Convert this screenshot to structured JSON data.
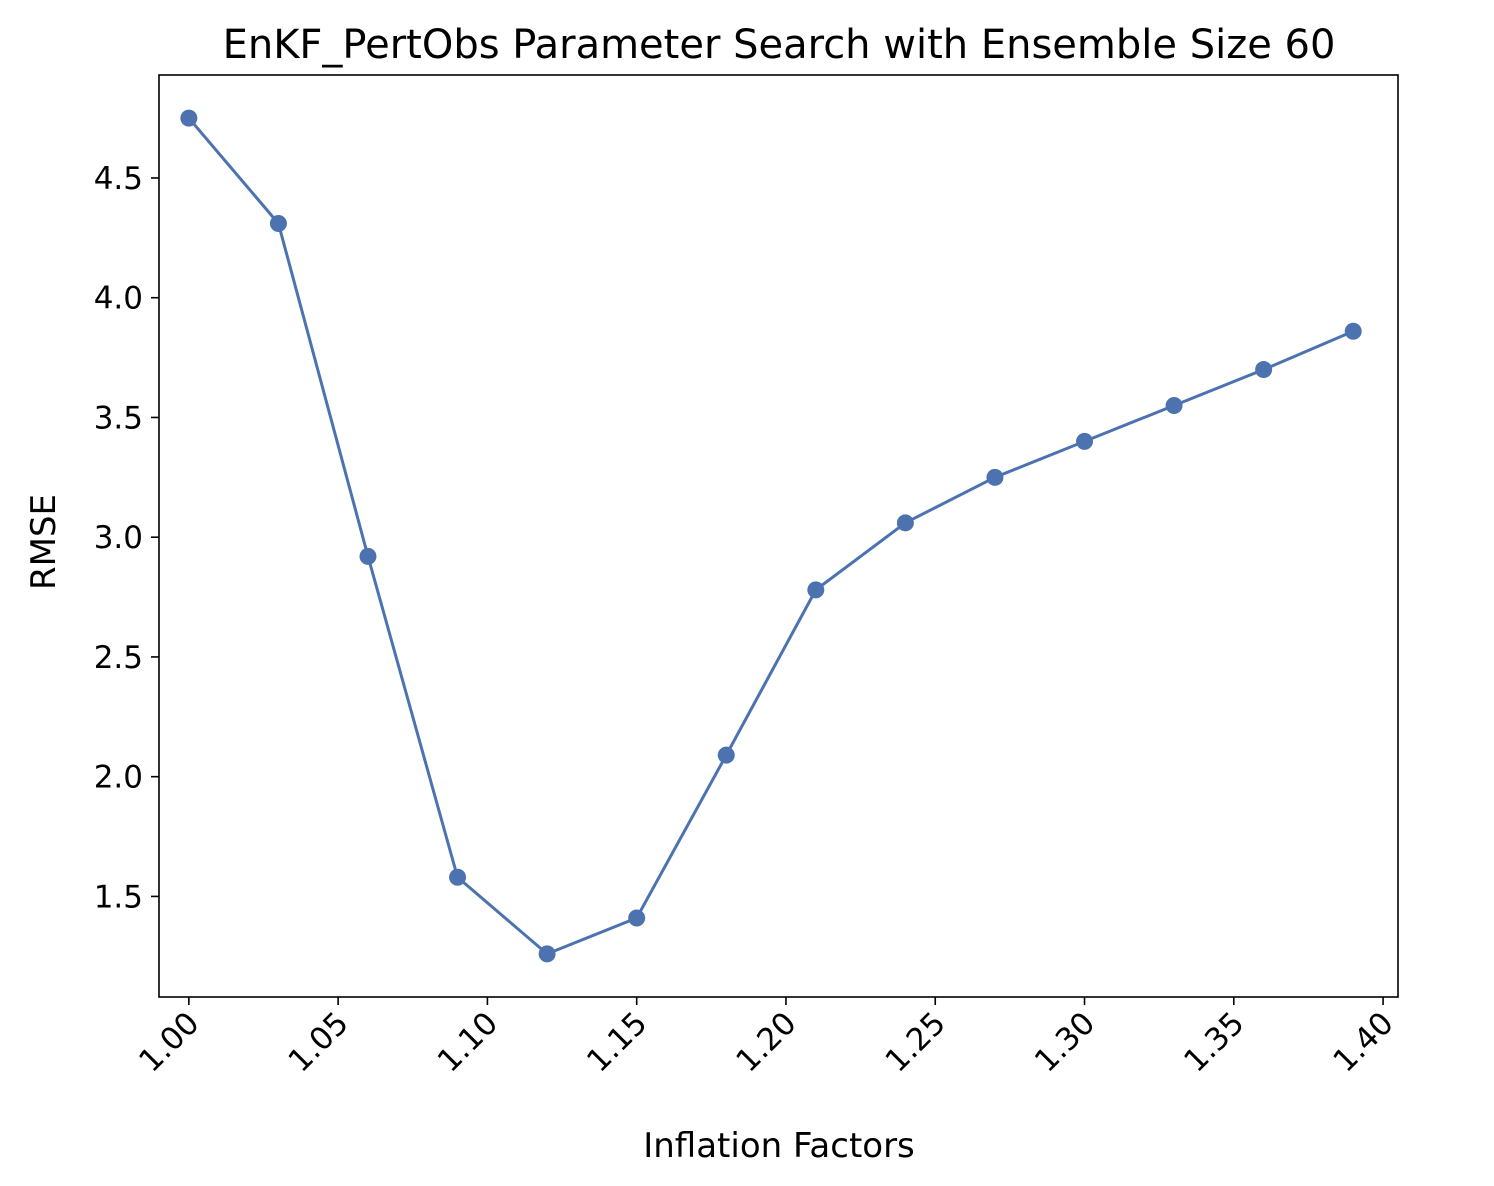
{
  "chart_data": {
    "type": "line",
    "title": "EnKF_PertObs Parameter Search with Ensemble Size 60",
    "xlabel": "Inflation Factors",
    "ylabel": "RMSE",
    "xlim": [
      0.99,
      1.405
    ],
    "ylim": [
      1.08,
      4.93
    ],
    "xticks": [
      "1.00",
      "1.05",
      "1.10",
      "1.15",
      "1.20",
      "1.25",
      "1.30",
      "1.35",
      "1.40"
    ],
    "xtick_values": [
      1.0,
      1.05,
      1.1,
      1.15,
      1.2,
      1.25,
      1.3,
      1.35,
      1.4
    ],
    "yticks": [
      "1.5",
      "2.0",
      "2.5",
      "3.0",
      "3.5",
      "4.0",
      "4.5"
    ],
    "ytick_values": [
      1.5,
      2.0,
      2.5,
      3.0,
      3.5,
      4.0,
      4.5
    ],
    "grid": false,
    "series": [
      {
        "color": "#4c72b0",
        "marker": "circle",
        "x": [
          1.0,
          1.03,
          1.06,
          1.09,
          1.12,
          1.15,
          1.18,
          1.21,
          1.24,
          1.27,
          1.3,
          1.33,
          1.36,
          1.39
        ],
        "y": [
          4.75,
          4.31,
          2.92,
          1.58,
          1.26,
          1.41,
          2.09,
          2.78,
          3.06,
          3.25,
          3.4,
          3.55,
          3.7,
          3.86
        ]
      }
    ]
  }
}
